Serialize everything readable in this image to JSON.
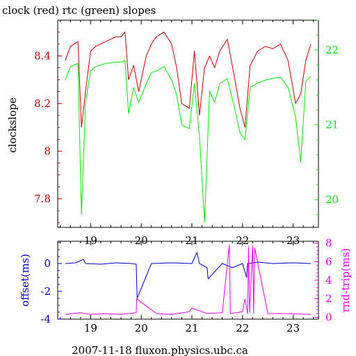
{
  "title": "clock (red) rtc (green) slopes",
  "footer": "2007-11-18 fluxon.physics.ubc.ca",
  "colors": {
    "red": "#cc0000",
    "green": "#00ee00",
    "blue": "#0000cc",
    "magenta": "#ee00ee",
    "axis": "#000000"
  },
  "chart_data": [
    {
      "type": "line",
      "title": "clock (red) rtc (green) slopes",
      "ylabel": "clockslope",
      "x_ticks": [
        "19",
        "20",
        "21",
        "22",
        "23"
      ],
      "x_tick_values": [
        19,
        20,
        21,
        22,
        23
      ],
      "xlim": [
        18.35,
        23.5
      ],
      "ylim_left": [
        7.68,
        8.55
      ],
      "y_ticks_left": [
        "7.8",
        "8",
        "8.2",
        "8.4"
      ],
      "y_tick_values_left": [
        7.8,
        8.0,
        8.2,
        8.4
      ],
      "ylim_right": [
        19.63,
        22.4
      ],
      "y_ticks_right": [
        "20",
        "21",
        "22"
      ],
      "y_tick_values_right": [
        20,
        21,
        22
      ],
      "series": [
        {
          "axis": "left",
          "x": [
            18.5,
            18.6,
            18.75,
            18.82,
            18.9,
            19.0,
            19.1,
            19.2,
            19.3,
            19.4,
            19.5,
            19.6,
            19.68,
            19.75,
            19.85,
            19.95,
            20.1,
            20.2,
            20.3,
            20.45,
            20.6,
            20.7,
            20.8,
            20.95,
            21.05,
            21.15,
            21.25,
            21.35,
            21.45,
            21.55,
            21.7,
            21.85,
            21.95,
            22.05,
            22.15,
            22.3,
            22.45,
            22.6,
            22.75,
            22.9,
            23.05,
            23.15,
            23.25,
            23.35
          ],
          "values": [
            8.38,
            8.44,
            8.46,
            8.1,
            8.25,
            8.42,
            8.44,
            8.45,
            8.46,
            8.47,
            8.48,
            8.48,
            8.5,
            8.3,
            8.36,
            8.25,
            8.4,
            8.45,
            8.48,
            8.5,
            8.45,
            8.35,
            8.2,
            8.18,
            8.42,
            8.15,
            8.35,
            8.4,
            8.35,
            8.42,
            8.47,
            8.3,
            8.18,
            8.1,
            8.36,
            8.42,
            8.44,
            8.43,
            8.45,
            8.38,
            8.2,
            8.24,
            8.38,
            8.45
          ]
        },
        {
          "axis": "right",
          "x": [
            18.5,
            18.6,
            18.75,
            18.82,
            18.9,
            19.0,
            19.1,
            19.2,
            19.3,
            19.4,
            19.5,
            19.6,
            19.68,
            19.75,
            19.85,
            19.95,
            20.1,
            20.2,
            20.3,
            20.45,
            20.6,
            20.7,
            20.8,
            20.95,
            21.05,
            21.15,
            21.25,
            21.35,
            21.45,
            21.55,
            21.7,
            21.85,
            21.95,
            22.05,
            22.15,
            22.3,
            22.45,
            22.6,
            22.75,
            22.9,
            23.05,
            23.15,
            23.25,
            23.35
          ],
          "values": [
            21.6,
            21.78,
            21.82,
            19.8,
            21.3,
            21.72,
            21.78,
            21.8,
            21.82,
            21.83,
            21.84,
            21.84,
            21.86,
            21.15,
            21.5,
            21.3,
            21.55,
            21.7,
            21.72,
            21.78,
            21.6,
            21.4,
            21.0,
            20.95,
            21.55,
            20.85,
            19.7,
            21.45,
            21.3,
            21.55,
            21.62,
            21.2,
            20.9,
            20.8,
            21.5,
            21.56,
            21.6,
            21.62,
            21.64,
            21.5,
            21.1,
            20.5,
            21.58,
            21.65
          ]
        }
      ]
    },
    {
      "type": "line",
      "ylabel_left": "offset(ms)",
      "ylabel_right": "rnd-trip(ms)",
      "x_ticks": [
        "19",
        "20",
        "21",
        "22",
        "23"
      ],
      "x_tick_values": [
        19,
        20,
        21,
        22,
        23
      ],
      "xlim": [
        18.35,
        23.5
      ],
      "ylim_left": [
        -4,
        1.6
      ],
      "y_ticks_left": [
        "0",
        "-2",
        "-4"
      ],
      "y_tick_values_left": [
        0,
        -2,
        -4
      ],
      "ylim_right": [
        -0.2,
        8.2
      ],
      "y_ticks_right": [
        "0",
        "2",
        "4",
        "6",
        "8"
      ],
      "y_tick_values_right": [
        0,
        2,
        4,
        6,
        8
      ],
      "series": [
        {
          "axis": "left",
          "x": [
            18.5,
            18.7,
            18.86,
            18.9,
            19.2,
            19.5,
            19.8,
            19.9,
            19.92,
            20.2,
            20.6,
            21.0,
            21.1,
            21.15,
            21.3,
            21.32,
            21.6,
            21.8,
            22.0,
            22.08,
            22.1,
            22.3,
            22.6,
            23.0,
            23.35
          ],
          "values": [
            0,
            0.05,
            0.3,
            0,
            -0.05,
            0.05,
            0,
            -0.05,
            -2.5,
            0,
            0.05,
            0,
            0.8,
            0,
            -0.3,
            -1.1,
            0,
            -0.3,
            0,
            -1.0,
            0,
            0.1,
            0,
            0.05,
            0
          ]
        },
        {
          "axis": "right",
          "x": [
            18.5,
            18.8,
            19.0,
            19.3,
            19.6,
            19.9,
            19.91,
            20.3,
            20.6,
            20.95,
            21.0,
            21.3,
            21.6,
            21.74,
            21.76,
            22.0,
            22.05,
            22.1,
            22.12,
            22.14,
            22.2,
            22.22,
            22.24,
            22.5,
            22.9,
            23.35
          ],
          "values": [
            0.3,
            0.5,
            0.3,
            0.4,
            0.3,
            0.5,
            2.0,
            0.4,
            0.3,
            0.6,
            1.0,
            0.4,
            0.5,
            7.8,
            0.4,
            0.6,
            2.0,
            0.4,
            7.6,
            0.5,
            7.7,
            0.4,
            7.5,
            0.4,
            0.4,
            0.3
          ]
        }
      ]
    }
  ]
}
